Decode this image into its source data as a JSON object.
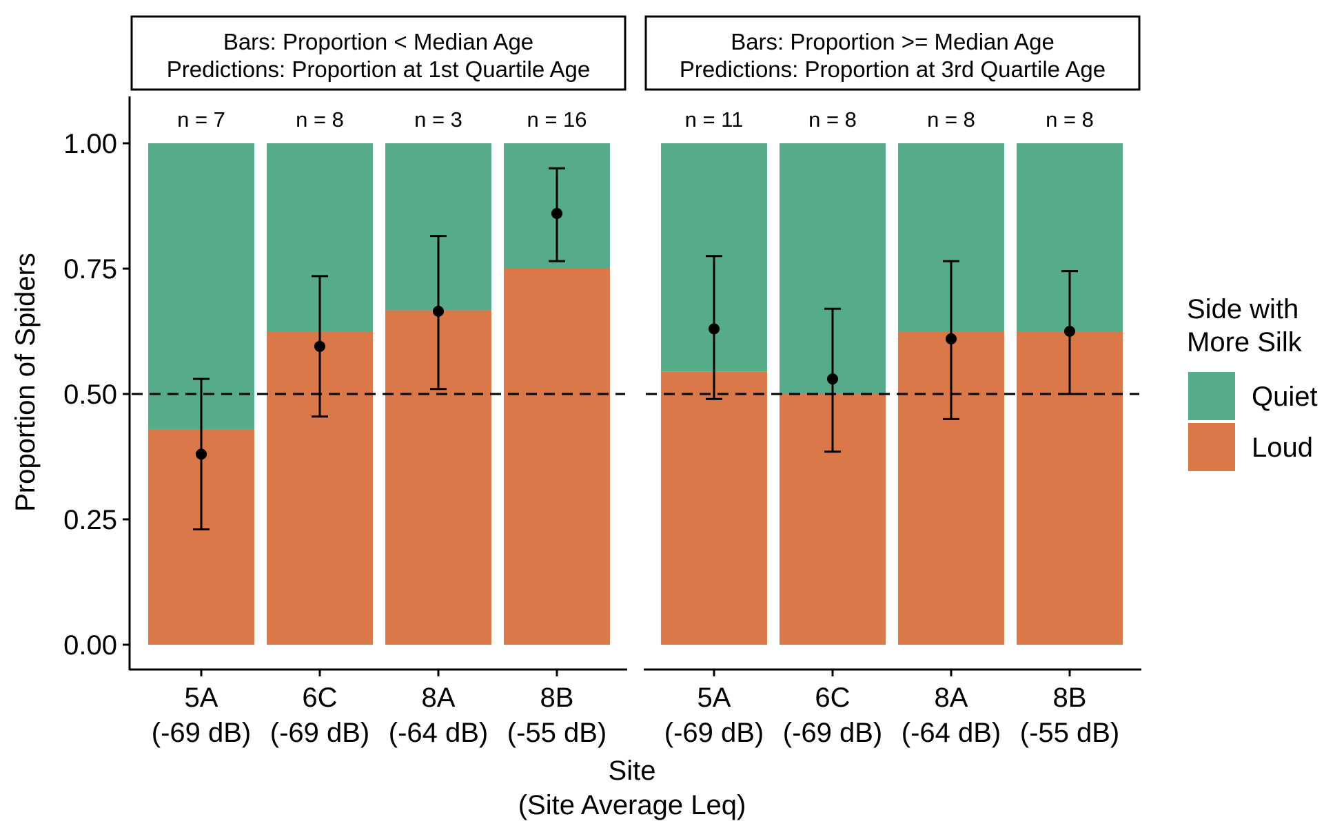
{
  "chart_data": {
    "type": "bar",
    "stacked": true,
    "ylabel": "Proportion of Spiders",
    "xlabel_line1": "Site",
    "xlabel_line2": "(Site Average Leq)",
    "ylim": [
      0,
      1
    ],
    "yticks": [
      "0.00",
      "0.25",
      "0.50",
      "0.75",
      "1.00"
    ],
    "ytick_values": [
      0,
      0.25,
      0.5,
      0.75,
      1.0
    ],
    "reference_line": 0.5,
    "grid": false,
    "legend": {
      "title_line1": "Side with",
      "title_line2": "More Silk",
      "position": "right",
      "items": [
        {
          "label": "Quiet",
          "color": "#56AC8A"
        },
        {
          "label": "Loud",
          "color": "#DA784A"
        }
      ]
    },
    "colors": {
      "quiet": "#56AC8A",
      "loud": "#DA784A"
    },
    "panels": [
      {
        "strip_line1": "Bars: Proportion < Median Age",
        "strip_line2": "Predictions: Proportion at 1st Quartile Age",
        "categories": [
          {
            "site": "5A",
            "leq": "(-69 dB)",
            "n_label": "n =  7",
            "loud": 0.43,
            "pred": 0.38,
            "ci": [
              0.23,
              0.53
            ]
          },
          {
            "site": "6C",
            "leq": "(-69 dB)",
            "n_label": "n =  8",
            "loud": 0.625,
            "pred": 0.595,
            "ci": [
              0.455,
              0.735
            ]
          },
          {
            "site": "8A",
            "leq": "(-64 dB)",
            "n_label": "n =  3",
            "loud": 0.667,
            "pred": 0.665,
            "ci": [
              0.51,
              0.815
            ]
          },
          {
            "site": "8B",
            "leq": "(-55 dB)",
            "n_label": "n =  16",
            "loud": 0.75,
            "pred": 0.86,
            "ci": [
              0.765,
              0.95
            ]
          }
        ]
      },
      {
        "strip_line1": "Bars: Proportion >= Median Age",
        "strip_line2": "Predictions: Proportion at 3rd Quartile Age",
        "categories": [
          {
            "site": "5A",
            "leq": "(-69 dB)",
            "n_label": "n =  11",
            "loud": 0.545,
            "pred": 0.63,
            "ci": [
              0.49,
              0.775
            ]
          },
          {
            "site": "6C",
            "leq": "(-69 dB)",
            "n_label": "n =  8",
            "loud": 0.5,
            "pred": 0.53,
            "ci": [
              0.385,
              0.67
            ]
          },
          {
            "site": "8A",
            "leq": "(-64 dB)",
            "n_label": "n =  8",
            "loud": 0.625,
            "pred": 0.61,
            "ci": [
              0.45,
              0.765
            ]
          },
          {
            "site": "8B",
            "leq": "(-55 dB)",
            "n_label": "n =  8",
            "loud": 0.625,
            "pred": 0.625,
            "ci": [
              0.5,
              0.745
            ]
          }
        ]
      }
    ]
  }
}
